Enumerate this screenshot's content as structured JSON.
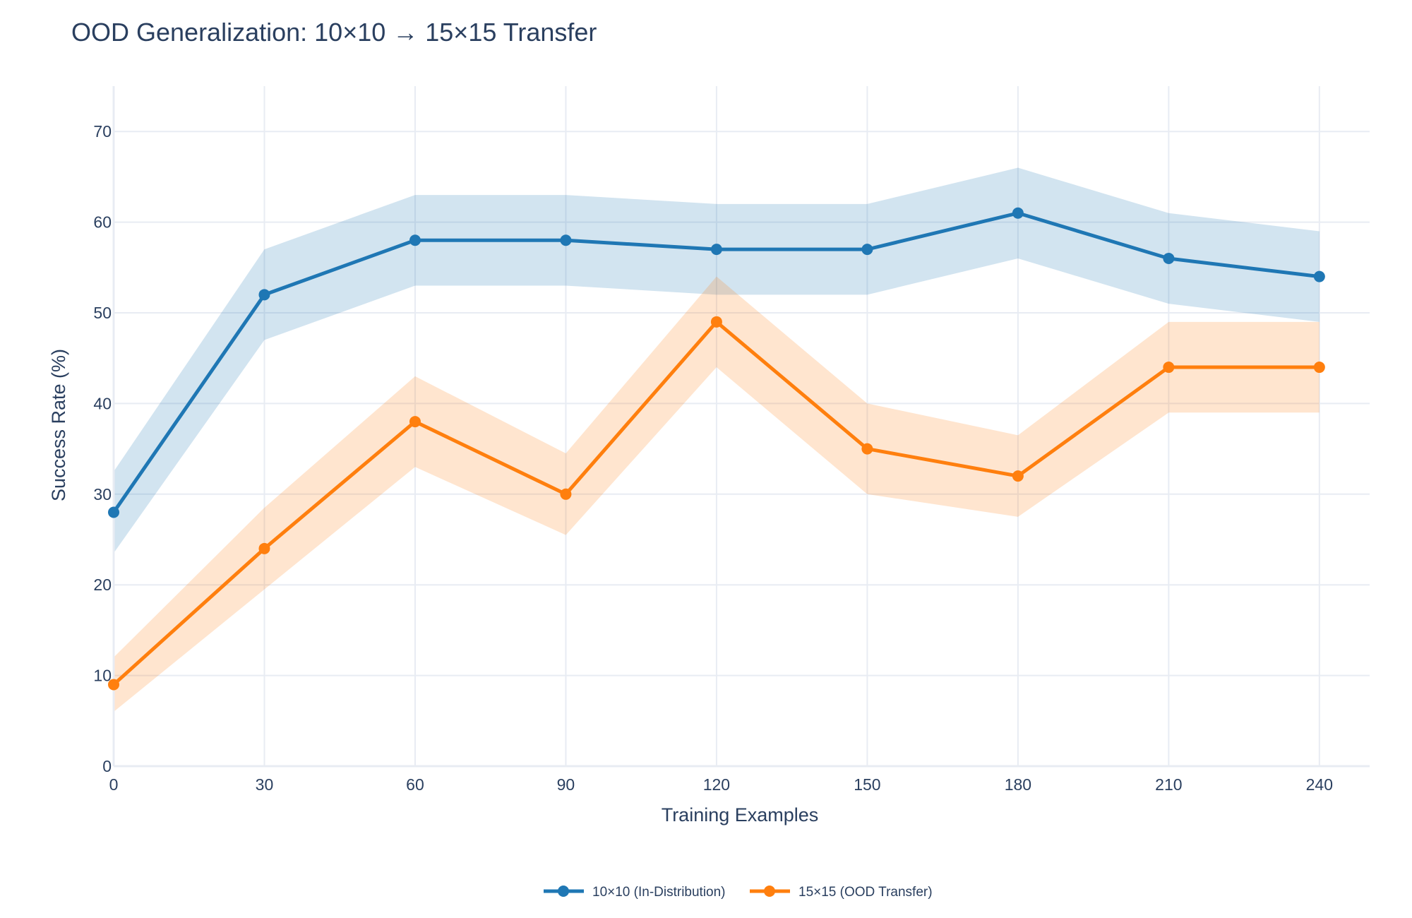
{
  "chart_data": {
    "type": "line",
    "title": "OOD Generalization: 10×10 → 15×15 Transfer",
    "xlabel": "Training Examples",
    "ylabel": "Success Rate (%)",
    "x": [
      0,
      30,
      60,
      90,
      120,
      150,
      180,
      210,
      240
    ],
    "xlim": [
      0,
      250
    ],
    "ylim": [
      0,
      75
    ],
    "xticks": [
      "0",
      "30",
      "60",
      "90",
      "120",
      "150",
      "180",
      "210",
      "240"
    ],
    "yticks": [
      "0",
      "10",
      "20",
      "30",
      "40",
      "50",
      "60",
      "70"
    ],
    "grid": true,
    "legend_position": "bottom-center",
    "series": [
      {
        "name": "10×10 (In-Distribution)",
        "color": "#1f77b4",
        "band_color": "#1f77b4",
        "values": [
          28,
          52,
          58,
          58,
          57,
          57,
          61,
          56,
          54
        ],
        "lower": [
          23.5,
          47,
          53,
          53,
          52,
          52,
          56,
          51,
          49
        ],
        "upper": [
          32.5,
          57,
          63,
          63,
          62,
          62,
          66,
          61,
          59
        ]
      },
      {
        "name": "15×15 (OOD Transfer)",
        "color": "#ff7f0e",
        "band_color": "#ff7f0e",
        "values": [
          9,
          24,
          38,
          30,
          49,
          35,
          32,
          44,
          44
        ],
        "lower": [
          6,
          19.5,
          33,
          25.5,
          44,
          30,
          27.5,
          39,
          39
        ],
        "upper": [
          12,
          28.5,
          43,
          34.5,
          54,
          40,
          36.5,
          49,
          49
        ]
      }
    ]
  }
}
